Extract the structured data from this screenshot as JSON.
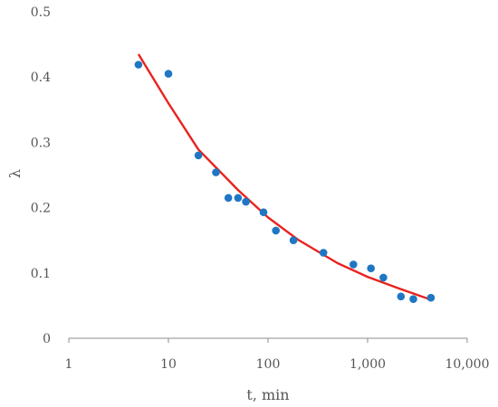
{
  "chart_data": {
    "type": "scatter",
    "title": "",
    "xlabel": "t, min",
    "ylabel": "λ",
    "xscale": "log",
    "xlim": [
      1,
      10000
    ],
    "ylim": [
      0,
      0.5
    ],
    "x_ticks": [
      1,
      10,
      100,
      1000,
      10000
    ],
    "x_tick_labels": [
      "1",
      "10",
      "100",
      "1,000",
      "10,000"
    ],
    "y_ticks": [
      0,
      0.1,
      0.2,
      0.3,
      0.4,
      0.5
    ],
    "y_tick_labels": [
      "0",
      "0.1",
      "0.2",
      "0.3",
      "0.4",
      "0.5"
    ],
    "grid": false,
    "legend": "none",
    "series": [
      {
        "type": "scatter",
        "color": "#1f77c4",
        "points": [
          {
            "x": 5,
            "y": 0.419
          },
          {
            "x": 10,
            "y": 0.405
          },
          {
            "x": 20,
            "y": 0.28
          },
          {
            "x": 30,
            "y": 0.254
          },
          {
            "x": 40,
            "y": 0.215
          },
          {
            "x": 50,
            "y": 0.215
          },
          {
            "x": 60,
            "y": 0.209
          },
          {
            "x": 90,
            "y": 0.193
          },
          {
            "x": 120,
            "y": 0.165
          },
          {
            "x": 180,
            "y": 0.15
          },
          {
            "x": 360,
            "y": 0.131
          },
          {
            "x": 720,
            "y": 0.113
          },
          {
            "x": 1080,
            "y": 0.107
          },
          {
            "x": 1440,
            "y": 0.093
          },
          {
            "x": 2160,
            "y": 0.064
          },
          {
            "x": 2880,
            "y": 0.06
          },
          {
            "x": 4320,
            "y": 0.062
          }
        ]
      },
      {
        "type": "line",
        "color": "#e8231e",
        "points": [
          {
            "x": 5,
            "y": 0.435
          },
          {
            "x": 10,
            "y": 0.36
          },
          {
            "x": 20,
            "y": 0.289
          },
          {
            "x": 50,
            "y": 0.227
          },
          {
            "x": 100,
            "y": 0.185
          },
          {
            "x": 200,
            "y": 0.151
          },
          {
            "x": 500,
            "y": 0.115
          },
          {
            "x": 1000,
            "y": 0.094
          },
          {
            "x": 2000,
            "y": 0.077
          },
          {
            "x": 4320,
            "y": 0.059
          }
        ]
      }
    ]
  }
}
